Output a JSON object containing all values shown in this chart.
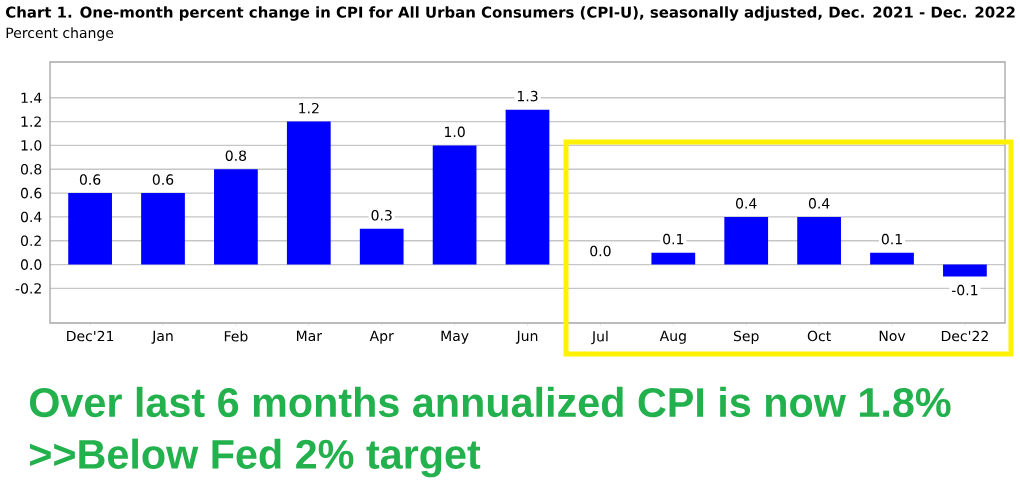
{
  "chart_data": {
    "type": "bar",
    "title": "Chart 1. One-month percent change in CPI for All Urban Consumers (CPI-U), seasonally adjusted, Dec. 2021 - Dec. 2022",
    "ylabel": "Percent change",
    "categories": [
      "Dec'21",
      "Jan",
      "Feb",
      "Mar",
      "Apr",
      "May",
      "Jun",
      "Jul",
      "Aug",
      "Sep",
      "Oct",
      "Nov",
      "Dec'22"
    ],
    "values": [
      0.6,
      0.6,
      0.8,
      1.2,
      0.3,
      1.0,
      1.3,
      0.0,
      0.1,
      0.4,
      0.4,
      0.1,
      -0.1
    ],
    "value_labels": [
      "0.6",
      "0.6",
      "0.8",
      "1.2",
      "0.3",
      "1.0",
      "1.3",
      "0.0",
      "0.1",
      "0.4",
      "0.4",
      "0.1",
      "-0.1"
    ],
    "color": "#0000ff",
    "ylim": [
      -0.49,
      1.7
    ],
    "yticks": [
      {
        "value": -0.2,
        "label": "-0.2"
      },
      {
        "value": 0,
        "label": "0.0"
      },
      0.2,
      0.4,
      0.6,
      0.8,
      {
        "value": 1,
        "label": "1.0"
      },
      1.2,
      1.4
    ],
    "grid": "y",
    "annotations": [
      "Over last 6 months annualized CPI is now 1.8%",
      ">>Below Fed 2% target"
    ]
  }
}
